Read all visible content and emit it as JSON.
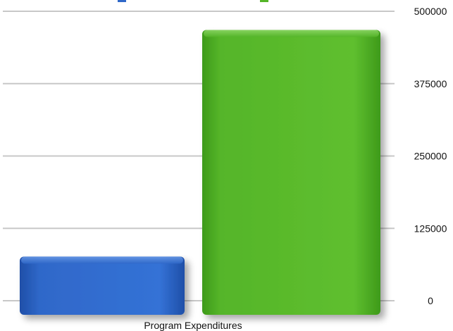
{
  "chart_data": {
    "type": "bar",
    "categories": [
      "Program Expenditures"
    ],
    "xlabel": "Program Expenditures",
    "ylabel": "",
    "ylim": [
      0,
      500000
    ],
    "yticks": [
      0,
      125000,
      250000,
      375000,
      500000
    ],
    "ytick_labels": [
      "0",
      "125000",
      "250000",
      "375000",
      "500000"
    ],
    "grid": true,
    "legend_position": "top (partially cut off)",
    "series": [
      {
        "name": "",
        "color": "#2f68c9",
        "values": [
          105000
        ]
      },
      {
        "name": "",
        "color": "#55b529",
        "values": [
          470000
        ]
      }
    ]
  }
}
